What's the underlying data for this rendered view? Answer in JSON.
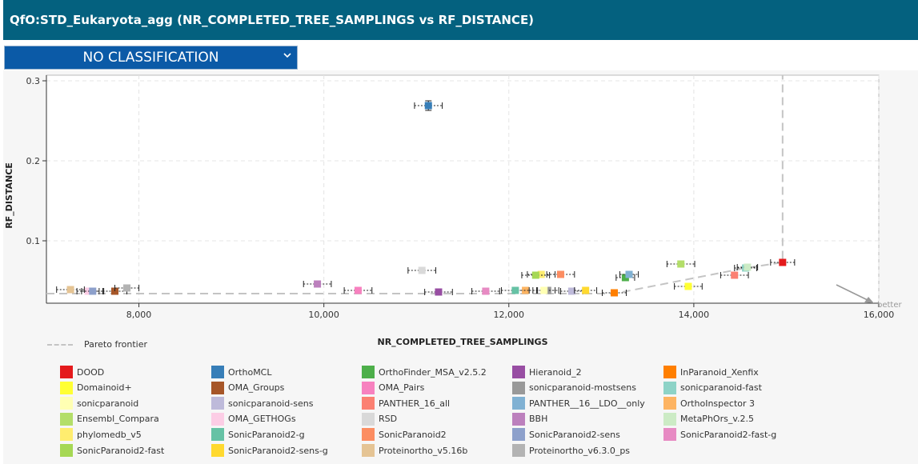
{
  "header": {
    "title": "QfO:STD_Eukaryota_agg (NR_COMPLETED_TREE_SAMPLINGS vs RF_DISTANCE)"
  },
  "classification": {
    "selected": "NO CLASSIFICATION",
    "icon": "chevron-down-icon"
  },
  "pareto_label": "Pareto frontier",
  "better_label": "better",
  "chart_data": {
    "type": "scatter",
    "title": "",
    "xlabel": "NR_COMPLETED_TREE_SAMPLINGS",
    "ylabel": "RF_DISTANCE",
    "xlim": [
      7000,
      16000
    ],
    "ylim": [
      0.022,
      0.307
    ],
    "xticks": [
      8000,
      10000,
      12000,
      14000,
      16000
    ],
    "xtick_labels": [
      "8,000",
      "10,000",
      "12,000",
      "14,000",
      "16,000"
    ],
    "yticks": [
      0.1,
      0.2,
      0.3
    ],
    "ytick_labels": [
      "0.1",
      "0.2",
      "0.3"
    ],
    "grid": true,
    "series": [
      {
        "name": "DOOD",
        "color": "#e41a1c",
        "x": 14960,
        "y": 0.073,
        "xerr": 130,
        "yerr": 0
      },
      {
        "name": "OrthoMCL",
        "color": "#377eb8",
        "x": 11130,
        "y": 0.269,
        "xerr": 150,
        "yerr": 0.006
      },
      {
        "name": "OrthoFinder_MSA_v2.5.2",
        "color": "#4daf4a",
        "x": 13260,
        "y": 0.054,
        "xerr": 100,
        "yerr": 0
      },
      {
        "name": "Hieranoid_2",
        "color": "#984ea3",
        "x": 11240,
        "y": 0.036,
        "xerr": 150,
        "yerr": 0
      },
      {
        "name": "InParanoid_Xenfix",
        "color": "#ff7f00",
        "x": 13140,
        "y": 0.035,
        "xerr": 130,
        "yerr": 0
      },
      {
        "name": "Domainoid+",
        "color": "#ffff33",
        "x": 13940,
        "y": 0.043,
        "xerr": 150,
        "yerr": 0
      },
      {
        "name": "OMA_Groups",
        "color": "#a65628",
        "x": 7740,
        "y": 0.037,
        "xerr": 130,
        "yerr": 0
      },
      {
        "name": "OMA_Pairs",
        "color": "#f781bf",
        "x": 10370,
        "y": 0.038,
        "xerr": 150,
        "yerr": 0
      },
      {
        "name": "sonicparanoid-mostsens",
        "color": "#999999",
        "x": 12420,
        "y": 0.038,
        "xerr": 120,
        "yerr": 0
      },
      {
        "name": "sonicparanoid-fast",
        "color": "#8dd3c7",
        "x": 14560,
        "y": 0.066,
        "xerr": 120,
        "yerr": 0
      },
      {
        "name": "sonicparanoid",
        "color": "#ffffb3",
        "x": 12380,
        "y": 0.038,
        "xerr": 120,
        "yerr": 0
      },
      {
        "name": "sonicparanoid-sens",
        "color": "#bebada",
        "x": 12680,
        "y": 0.037,
        "xerr": 120,
        "yerr": 0
      },
      {
        "name": "PANTHER_16_all",
        "color": "#fb8072",
        "x": 14440,
        "y": 0.057,
        "xerr": 150,
        "yerr": 0
      },
      {
        "name": "PANTHER__16__LDO__only",
        "color": "#80b1d3",
        "x": 13300,
        "y": 0.058,
        "xerr": 100,
        "yerr": 0
      },
      {
        "name": "OrthoInspector 3",
        "color": "#fdb462",
        "x": 12180,
        "y": 0.038,
        "xerr": 130,
        "yerr": 0
      },
      {
        "name": "Ensembl_Compara",
        "color": "#b3de69",
        "x": 13860,
        "y": 0.071,
        "xerr": 150,
        "yerr": 0
      },
      {
        "name": "OMA_GETHOGs",
        "color": "#fccde5",
        "x": 7450,
        "y": 0.037,
        "xerr": 120,
        "yerr": 0
      },
      {
        "name": "RSD",
        "color": "#d9d9d9",
        "x": 11060,
        "y": 0.063,
        "xerr": 150,
        "yerr": 0
      },
      {
        "name": "BBH",
        "color": "#bc80bd",
        "x": 9930,
        "y": 0.046,
        "xerr": 150,
        "yerr": 0
      },
      {
        "name": "MetaPhOrs_v.2.5",
        "color": "#ccebc5",
        "x": 14580,
        "y": 0.067,
        "xerr": 110,
        "yerr": 0
      },
      {
        "name": "phylomedb_v5",
        "color": "#ffed6f",
        "x": 12350,
        "y": 0.058,
        "xerr": 150,
        "yerr": 0
      },
      {
        "name": "SonicParanoid2-g",
        "color": "#66c2a5",
        "x": 12070,
        "y": 0.038,
        "xerr": 150,
        "yerr": 0
      },
      {
        "name": "SonicParanoid2",
        "color": "#fc8d62",
        "x": 12560,
        "y": 0.058,
        "xerr": 150,
        "yerr": 0
      },
      {
        "name": "SonicParanoid2-sens",
        "color": "#8da0cb",
        "x": 7500,
        "y": 0.037,
        "xerr": 120,
        "yerr": 0
      },
      {
        "name": "SonicParanoid2-fast-g",
        "color": "#e78ac3",
        "x": 11750,
        "y": 0.037,
        "xerr": 150,
        "yerr": 0
      },
      {
        "name": "SonicParanoid2-fast",
        "color": "#a6d854",
        "x": 12290,
        "y": 0.057,
        "xerr": 150,
        "yerr": 0
      },
      {
        "name": "SonicParanoid2-sens-g",
        "color": "#ffd92f",
        "x": 12830,
        "y": 0.038,
        "xerr": 120,
        "yerr": 0
      },
      {
        "name": "Proteinortho_v5.16b",
        "color": "#e5c494",
        "x": 7260,
        "y": 0.039,
        "xerr": 150,
        "yerr": 0
      },
      {
        "name": "Proteinortho_v6.3.0_ps",
        "color": "#b3b3b3",
        "x": 7870,
        "y": 0.041,
        "xerr": 130,
        "yerr": 0
      }
    ],
    "pareto_frontier": [
      [
        7000,
        0.034
      ],
      [
        13140,
        0.034
      ],
      [
        14560,
        0.066
      ],
      [
        14960,
        0.073
      ],
      [
        14960,
        0.307
      ]
    ],
    "legend_placement": "bottom"
  }
}
